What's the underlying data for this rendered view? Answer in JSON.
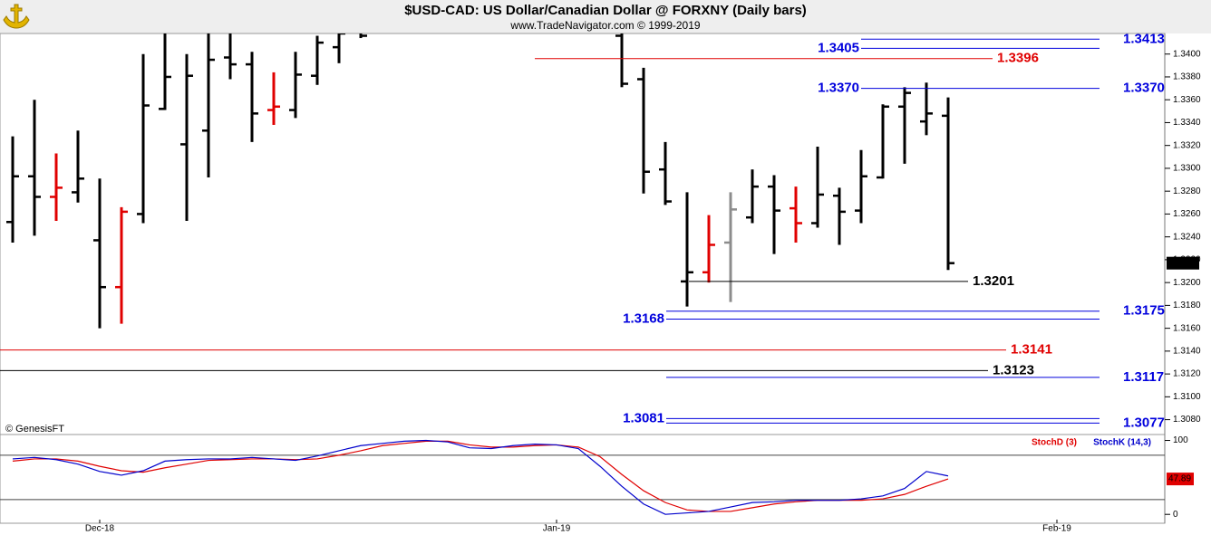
{
  "header": {
    "title": "$USD-CAD:  US Dollar/Canadian Dollar @ FORXNY  (Daily bars)",
    "subtitle": "www.TradeNavigator.com © 1999-2019",
    "credit": "© GenesisFT"
  },
  "chart_data": [
    {
      "type": "ohlc",
      "ylim": [
        1.3067,
        1.3418
      ],
      "yticks": [
        {
          "value": 1.308,
          "label": "1.3080"
        },
        {
          "value": 1.31,
          "label": "1.3100"
        },
        {
          "value": 1.312,
          "label": "1.3120"
        },
        {
          "value": 1.314,
          "label": "1.3140"
        },
        {
          "value": 1.316,
          "label": "1.3160"
        },
        {
          "value": 1.318,
          "label": "1.3180"
        },
        {
          "value": 1.32,
          "label": "1.3200"
        },
        {
          "value": 1.322,
          "label": "1.3220"
        },
        {
          "value": 1.324,
          "label": "1.3240"
        },
        {
          "value": 1.326,
          "label": "1.3260"
        },
        {
          "value": 1.328,
          "label": "1.3280"
        },
        {
          "value": 1.33,
          "label": "1.3300"
        },
        {
          "value": 1.332,
          "label": "1.3320"
        },
        {
          "value": 1.334,
          "label": "1.3340"
        },
        {
          "value": 1.336,
          "label": "1.3360"
        },
        {
          "value": 1.338,
          "label": "1.3380"
        },
        {
          "value": 1.34,
          "label": "1.3400"
        }
      ],
      "open": [
        1.3253,
        1.3293,
        1.3275,
        1.3279,
        1.3237,
        1.3196,
        1.326,
        1.3352,
        1.3321,
        1.3333,
        1.3397,
        1.3391,
        1.3351,
        1.3351,
        1.3381,
        1.3406,
        1.343,
        null,
        null,
        null,
        null,
        null,
        null,
        null,
        null,
        null,
        null,
        null,
        1.3416,
        1.3378,
        1.3299,
        1.3201,
        1.3209,
        1.3235,
        1.3257,
        1.3284,
        1.3265,
        1.3252,
        1.3276,
        1.3263,
        1.3292,
        1.3354,
        1.3341,
        1.3346,
        null,
        null,
        null,
        null,
        null,
        null,
        null,
        null,
        null
      ],
      "high": [
        1.3328,
        1.336,
        1.3313,
        1.3333,
        1.3291,
        1.3266,
        1.34,
        1.342,
        1.34,
        1.342,
        1.342,
        1.3402,
        1.3384,
        1.3402,
        1.3416,
        1.342,
        1.345,
        null,
        null,
        null,
        null,
        null,
        null,
        null,
        null,
        null,
        null,
        null,
        1.342,
        1.3388,
        1.3323,
        1.3279,
        1.3259,
        1.3279,
        1.3299,
        1.3294,
        1.3284,
        1.3319,
        1.3283,
        1.3316,
        1.3356,
        1.3371,
        1.3375,
        1.3362,
        null,
        null,
        null,
        null,
        null,
        null,
        null,
        null,
        null
      ],
      "low": [
        1.3235,
        1.3241,
        1.3254,
        1.327,
        1.316,
        1.3164,
        1.3252,
        1.3351,
        1.3254,
        1.3292,
        1.3378,
        1.3323,
        1.3338,
        1.3344,
        1.3373,
        1.3392,
        1.3414,
        null,
        null,
        null,
        null,
        null,
        null,
        null,
        null,
        null,
        null,
        null,
        1.3371,
        1.3278,
        1.3268,
        1.3179,
        1.32,
        1.3183,
        1.3252,
        1.3225,
        1.3235,
        1.3248,
        1.3233,
        1.3252,
        1.3291,
        1.3304,
        1.3329,
        1.3211,
        null,
        null,
        null,
        null,
        null,
        null,
        null,
        null,
        null
      ],
      "close": [
        1.3293,
        1.3275,
        1.3283,
        1.3291,
        1.3196,
        1.3262,
        1.3355,
        1.338,
        1.3381,
        1.3395,
        1.3391,
        1.3348,
        1.3354,
        1.3382,
        1.341,
        1.3418,
        1.3416,
        null,
        null,
        null,
        null,
        null,
        null,
        null,
        null,
        null,
        null,
        null,
        1.3374,
        1.3297,
        1.3271,
        1.3209,
        1.3233,
        1.3264,
        1.3284,
        1.3263,
        1.3252,
        1.3277,
        1.3262,
        1.3293,
        1.3354,
        1.3366,
        1.3348,
        1.3217,
        null,
        null,
        null,
        null,
        null,
        null,
        null,
        null,
        null
      ],
      "colors": [
        "#000000",
        "#000000",
        "#e00000",
        "#000000",
        "#000000",
        "#e00000",
        "#000000",
        "#000000",
        "#000000",
        "#000000",
        "#000000",
        "#000000",
        "#e00000",
        "#000000",
        "#000000",
        "#000000",
        "#000000",
        null,
        null,
        null,
        null,
        null,
        null,
        null,
        null,
        null,
        null,
        null,
        "#000000",
        "#000000",
        "#000000",
        "#000000",
        "#e00000",
        "#8c8c8c",
        "#000000",
        "#000000",
        "#e00000",
        "#000000",
        "#000000",
        "#000000",
        "#000000",
        "#000000",
        "#000000",
        "#000000",
        null,
        null,
        null,
        null,
        null,
        null,
        null,
        null,
        null
      ],
      "levels": [
        {
          "value": 1.3413,
          "color": "#0000dd"
        },
        {
          "value": 1.3405,
          "color": "#0000dd"
        },
        {
          "value": 1.3396,
          "color": "#e00000"
        },
        {
          "value": 1.337,
          "label": "1.3370",
          "color": "#0000dd"
        },
        {
          "value": 1.3201,
          "color": "#000000"
        },
        {
          "value": 1.3175,
          "color": "#0000dd"
        },
        {
          "value": 1.3168,
          "color": "#0000dd"
        },
        {
          "value": 1.3141,
          "color": "#e00000"
        },
        {
          "value": 1.3123,
          "color": "#000000"
        },
        {
          "value": 1.3117,
          "color": "#0000dd"
        },
        {
          "value": 1.3081,
          "color": "#0000dd"
        },
        {
          "value": 1.3077,
          "color": "#0000dd"
        }
      ]
    },
    {
      "type": "line",
      "categories": [
        null,
        null,
        null,
        null,
        "Dec-18",
        null,
        null,
        null,
        null,
        null,
        null,
        null,
        null,
        null,
        null,
        null,
        null,
        null,
        null,
        null,
        null,
        null,
        null,
        null,
        null,
        "Jan-19",
        null,
        null,
        null,
        null,
        null,
        null,
        null,
        null,
        null,
        null,
        null,
        null,
        null,
        null,
        null,
        null,
        null,
        null,
        null,
        null,
        null,
        null,
        "Feb-19",
        null,
        null,
        null,
        null
      ],
      "ylim": [
        -12,
        108
      ],
      "yticks": [
        0,
        100
      ],
      "hlines": [
        20,
        80
      ],
      "series": [
        {
          "name": "StochD (3)",
          "color": "#e00000",
          "values": [
            72,
            75,
            75,
            72,
            65,
            59,
            57,
            63,
            68,
            73,
            74,
            75,
            75,
            74,
            75,
            80,
            86,
            93,
            96,
            99,
            99,
            94,
            91,
            91,
            93,
            94,
            91,
            78,
            54,
            32,
            16,
            6,
            4,
            4,
            9,
            14,
            17,
            19,
            19,
            19,
            21,
            27,
            38,
            47.89,
            null,
            null,
            null,
            null,
            null,
            null,
            null,
            null,
            null
          ]
        },
        {
          "name": "StochK (14,3)",
          "color": "#0000cc",
          "values": [
            75,
            77,
            74,
            68,
            58,
            53,
            59,
            72,
            74,
            75,
            75,
            77,
            75,
            73,
            79,
            86,
            93,
            96,
            99,
            100,
            98,
            90,
            89,
            93,
            95,
            94,
            89,
            65,
            38,
            14,
            0,
            2,
            4,
            10,
            16,
            17,
            19,
            19,
            19,
            21,
            25,
            35,
            58,
            52,
            null,
            null,
            null,
            null,
            null,
            null,
            null,
            null,
            null
          ]
        }
      ]
    }
  ]
}
